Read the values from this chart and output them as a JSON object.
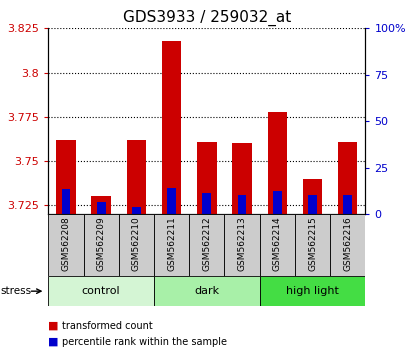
{
  "title": "GDS3933 / 259032_at",
  "samples": [
    "GSM562208",
    "GSM562209",
    "GSM562210",
    "GSM562211",
    "GSM562212",
    "GSM562213",
    "GSM562214",
    "GSM562215",
    "GSM562216"
  ],
  "red_values": [
    3.762,
    3.73,
    3.762,
    3.818,
    3.761,
    3.76,
    3.778,
    3.74,
    3.761
  ],
  "blue_values": [
    3.734,
    3.727,
    3.724,
    3.735,
    3.732,
    3.731,
    3.733,
    3.731,
    3.731
  ],
  "ymin": 3.72,
  "ymax": 3.825,
  "yticks": [
    3.725,
    3.75,
    3.775,
    3.8,
    3.825
  ],
  "ytick_labels": [
    "3.725",
    "3.75",
    "3.775",
    "3.8",
    "3.825"
  ],
  "right_yticks": [
    0,
    25,
    50,
    75,
    100
  ],
  "right_ytick_labels": [
    "0",
    "25",
    "50",
    "75",
    "100%"
  ],
  "groups": [
    {
      "label": "control",
      "start": 0,
      "end": 3,
      "color": "#d4f5d4"
    },
    {
      "label": "dark",
      "start": 3,
      "end": 6,
      "color": "#a8f0a8"
    },
    {
      "label": "high light",
      "start": 6,
      "end": 9,
      "color": "#44dd44"
    }
  ],
  "bar_width": 0.55,
  "blue_bar_width": 0.25,
  "red_color": "#cc0000",
  "blue_color": "#0000cc",
  "grid_color": "#000000",
  "title_fontsize": 11,
  "tick_label_color_left": "#cc0000",
  "tick_label_color_right": "#0000cc",
  "label_bg_color": "#cccccc"
}
